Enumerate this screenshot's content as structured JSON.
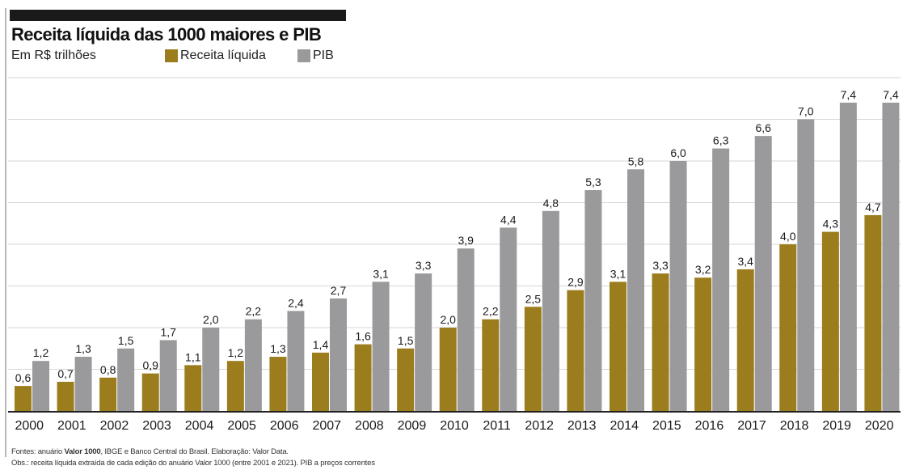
{
  "header": {
    "title": "Receita líquida das 1000 maiores e PIB",
    "unit": "Em R$ trilhões"
  },
  "colors": {
    "receita": "#9c7d1e",
    "pib": "#9a9a9c",
    "grid": "#d6d6d6",
    "baseline": "#222222"
  },
  "chart_data": {
    "type": "bar",
    "categories": [
      "2000",
      "2001",
      "2002",
      "2003",
      "2004",
      "2005",
      "2006",
      "2007",
      "2008",
      "2009",
      "2010",
      "2011",
      "2012",
      "2013",
      "2014",
      "2015",
      "2016",
      "2017",
      "2018",
      "2019",
      "2020"
    ],
    "series": [
      {
        "name": "Receita líquida",
        "values": [
          0.6,
          0.7,
          0.8,
          0.9,
          1.1,
          1.2,
          1.3,
          1.4,
          1.6,
          1.5,
          2.0,
          2.2,
          2.5,
          2.9,
          3.1,
          3.3,
          3.2,
          3.4,
          4.0,
          4.3,
          4.7
        ]
      },
      {
        "name": "PIB",
        "values": [
          1.2,
          1.3,
          1.5,
          1.7,
          2.0,
          2.2,
          2.4,
          2.7,
          3.1,
          3.3,
          3.9,
          4.4,
          4.8,
          5.3,
          5.8,
          6.0,
          6.3,
          6.6,
          7.0,
          7.4,
          7.4
        ]
      }
    ],
    "value_labels": [
      [
        "0,6",
        "0,7",
        "0,8",
        "0,9",
        "1,1",
        "1,2",
        "1,3",
        "1,4",
        "1,6",
        "1,5",
        "2,0",
        "2,2",
        "2,5",
        "2,9",
        "3,1",
        "3,3",
        "3,2",
        "3,4",
        "4,0",
        "4,3",
        "4,7"
      ],
      [
        "1,2",
        "1,3",
        "1,5",
        "1,7",
        "2,0",
        "2,2",
        "2,4",
        "2,7",
        "3,1",
        "3,3",
        "3,9",
        "4,4",
        "4,8",
        "5,3",
        "5,8",
        "6,0",
        "6,3",
        "6,6",
        "7,0",
        "7,4",
        "7,4"
      ]
    ],
    "ylim": [
      0,
      8
    ],
    "grid": true,
    "legend_position": "top"
  },
  "footer": {
    "source_prefix": "Fontes: anuário ",
    "source_bold": "Valor 1000",
    "source_suffix": ", IBGE e Banco Central do Brasil. Elaboração: Valor Data.",
    "note": "Obs.: receita líquida extraída de cada edição do anuário Valor 1000 (entre 2001 e 2021). PIB a preços correntes"
  }
}
